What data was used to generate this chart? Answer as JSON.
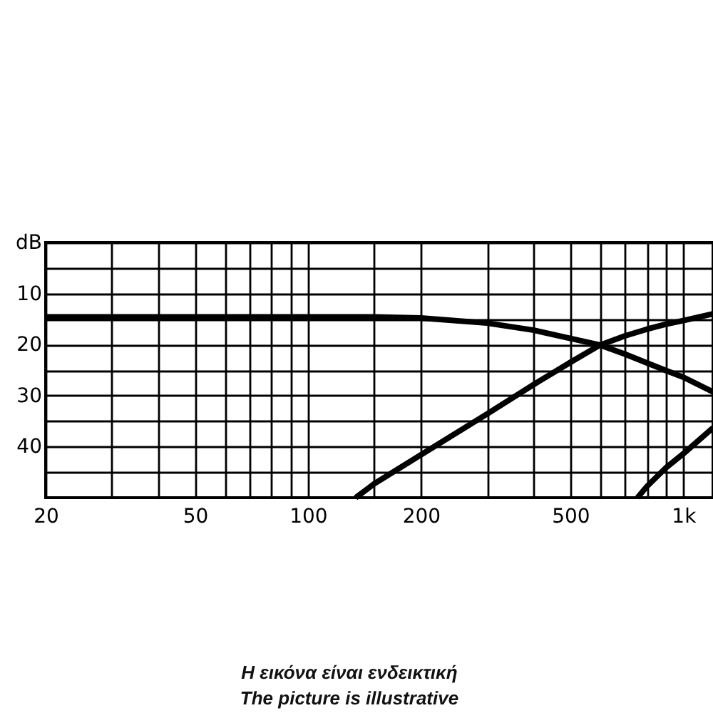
{
  "chart_data": {
    "type": "line",
    "log": "x",
    "grid": true,
    "line_style": "solid",
    "xlim": [
      20,
      1200
    ],
    "ylim": [
      50,
      0
    ],
    "xticks": [
      20,
      {
        "value": 30,
        "label": null
      },
      {
        "value": 40,
        "label": null
      },
      50,
      {
        "value": 60,
        "label": null
      },
      {
        "value": 70,
        "label": null
      },
      {
        "value": 80,
        "label": null
      },
      {
        "value": 90,
        "label": null
      },
      100,
      {
        "value": 150,
        "label": null
      },
      200,
      {
        "value": 300,
        "label": null
      },
      {
        "value": 400,
        "label": null
      },
      500,
      {
        "value": 600,
        "label": null
      },
      {
        "value": 700,
        "label": null
      },
      {
        "value": 800,
        "label": null
      },
      {
        "value": 900,
        "label": null
      },
      {
        "value": 1000,
        "label": "1k"
      }
    ],
    "yticks": [
      {
        "value": 0,
        "label": "dB"
      },
      {
        "value": 5,
        "label": null
      },
      10,
      {
        "value": 15,
        "label": null
      },
      20,
      {
        "value": 25,
        "label": null
      },
      30,
      {
        "value": 35,
        "label": null
      },
      40,
      {
        "value": 45,
        "label": null
      }
    ],
    "series": [
      {
        "color": "#000000",
        "x": [
          20,
          100,
          150,
          200,
          300,
          400,
          500,
          600,
          700,
          800,
          900,
          1000,
          1200
        ],
        "values": [
          14.6,
          14.6,
          14.6,
          14.8,
          15.8,
          17.2,
          18.8,
          20.1,
          21.9,
          23.6,
          25.1,
          26.4,
          29.3
        ]
      },
      {
        "color": "#000000",
        "x": [
          134,
          150,
          200,
          300,
          400,
          500,
          600,
          700,
          800,
          900,
          1000,
          1200
        ],
        "values": [
          50,
          47.3,
          41.6,
          33.6,
          27.8,
          23.5,
          20.1,
          18.3,
          17.0,
          16.0,
          15.3,
          14.0
        ]
      },
      {
        "color": "#000000",
        "x": [
          755,
          800,
          900,
          1000,
          1200
        ],
        "values": [
          50,
          47.8,
          44.1,
          41.4,
          36.3
        ]
      }
    ],
    "annotations": [
      "Η εικόνα είναι ενδεικτική",
      "The picture is illustrative"
    ]
  }
}
